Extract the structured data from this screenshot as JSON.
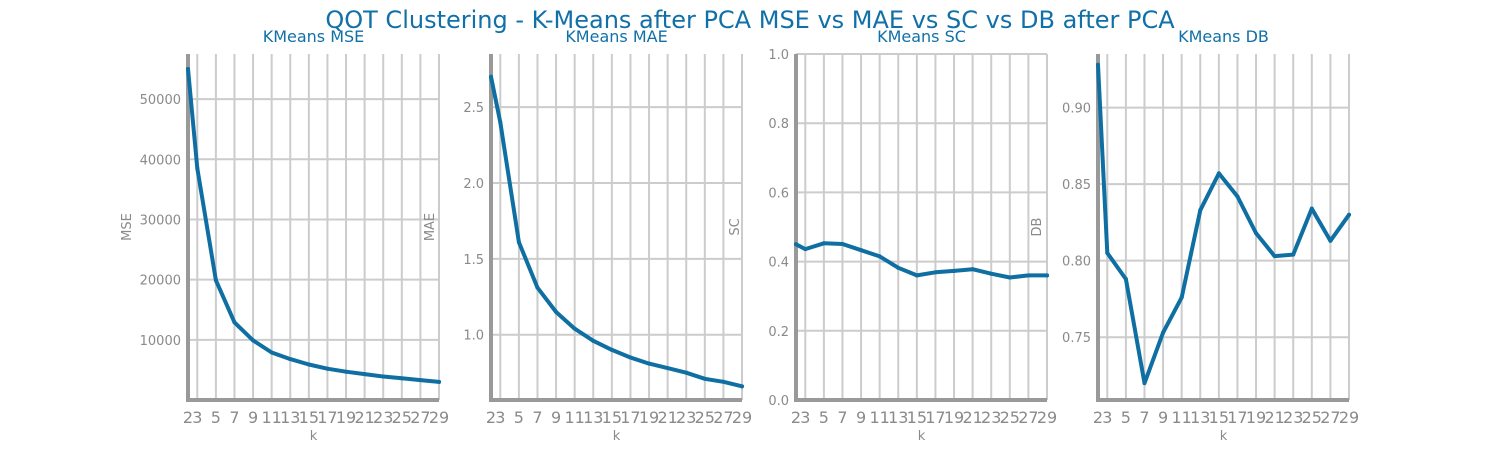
{
  "title": "QOT Clustering - K-Means after PCA MSE vs MAE vs SC vs DB after PCA",
  "colors": {
    "line": "#0f6fa3",
    "grid": "#cccccc",
    "spine": "#999999",
    "title": "#1170a8",
    "tick": "#8a8a8a"
  },
  "chart_data": [
    {
      "type": "line",
      "title": "KMeans MSE",
      "xlabel": "k",
      "ylabel": "MSE",
      "x": [
        2,
        3,
        5,
        7,
        9,
        11,
        13,
        15,
        17,
        19,
        21,
        23,
        25,
        27,
        29
      ],
      "xticks": [
        "2",
        "3",
        "5",
        "7",
        "9",
        "11",
        "13",
        "15",
        "17",
        "19",
        "21",
        "23",
        "25",
        "27",
        "29"
      ],
      "values": [
        55000,
        38500,
        19900,
        12900,
        9900,
        7900,
        6800,
        5900,
        5200,
        4700,
        4300,
        3900,
        3600,
        3300,
        3000
      ],
      "yticks": [
        10000,
        20000,
        30000,
        40000,
        50000
      ],
      "yticklabels": [
        "10000",
        "20000",
        "30000",
        "40000",
        "50000"
      ],
      "xlim": [
        2,
        29
      ],
      "ylim": [
        0,
        57500
      ],
      "grid": true
    },
    {
      "type": "line",
      "title": "KMeans MAE",
      "xlabel": "k",
      "ylabel": "MAE",
      "x": [
        2,
        3,
        5,
        7,
        9,
        11,
        13,
        15,
        17,
        19,
        21,
        23,
        25,
        27,
        29
      ],
      "xticks": [
        "2",
        "3",
        "5",
        "7",
        "9",
        "11",
        "13",
        "15",
        "17",
        "19",
        "21",
        "23",
        "25",
        "27",
        "29"
      ],
      "values": [
        2.7,
        2.4,
        1.61,
        1.31,
        1.15,
        1.04,
        0.96,
        0.9,
        0.85,
        0.81,
        0.78,
        0.75,
        0.71,
        0.69,
        0.66
      ],
      "yticks": [
        1.0,
        1.5,
        2.0,
        2.5
      ],
      "yticklabels": [
        "1.0",
        "1.5",
        "2.0",
        "2.5"
      ],
      "xlim": [
        2,
        29
      ],
      "ylim": [
        0.57,
        2.85
      ],
      "grid": true
    },
    {
      "type": "line",
      "title": "KMeans SC",
      "xlabel": "k",
      "ylabel": "SC",
      "x": [
        2,
        3,
        5,
        7,
        9,
        11,
        13,
        15,
        17,
        19,
        21,
        23,
        25,
        27,
        29
      ],
      "xticks": [
        "2",
        "3",
        "5",
        "7",
        "9",
        "11",
        "13",
        "15",
        "17",
        "19",
        "21",
        "23",
        "25",
        "27",
        "29"
      ],
      "values": [
        0.45,
        0.436,
        0.453,
        0.451,
        0.433,
        0.415,
        0.382,
        0.36,
        0.369,
        0.373,
        0.378,
        0.365,
        0.354,
        0.36,
        0.36
      ],
      "yticks": [
        0.0,
        0.2,
        0.4,
        0.6,
        0.8,
        1.0
      ],
      "yticklabels": [
        "0.0",
        "0.2",
        "0.4",
        "0.6",
        "0.8",
        "1.0"
      ],
      "xlim": [
        2,
        29
      ],
      "ylim": [
        0.0,
        1.0
      ],
      "grid": true
    },
    {
      "type": "line",
      "title": "KMeans DB",
      "xlabel": "k",
      "ylabel": "DB",
      "x": [
        2,
        3,
        5,
        7,
        9,
        11,
        13,
        15,
        17,
        19,
        21,
        23,
        25,
        27,
        29
      ],
      "xticks": [
        "2",
        "3",
        "5",
        "7",
        "9",
        "11",
        "13",
        "15",
        "17",
        "19",
        "21",
        "23",
        "25",
        "27",
        "29"
      ],
      "values": [
        0.928,
        0.805,
        0.788,
        0.72,
        0.753,
        0.776,
        0.833,
        0.857,
        0.842,
        0.818,
        0.803,
        0.804,
        0.834,
        0.813,
        0.83
      ],
      "yticks": [
        0.75,
        0.8,
        0.85,
        0.9
      ],
      "yticklabels": [
        "0.75",
        "0.80",
        "0.85",
        "0.90"
      ],
      "xlim": [
        2,
        29
      ],
      "ylim": [
        0.709,
        0.935
      ],
      "grid": true
    }
  ]
}
